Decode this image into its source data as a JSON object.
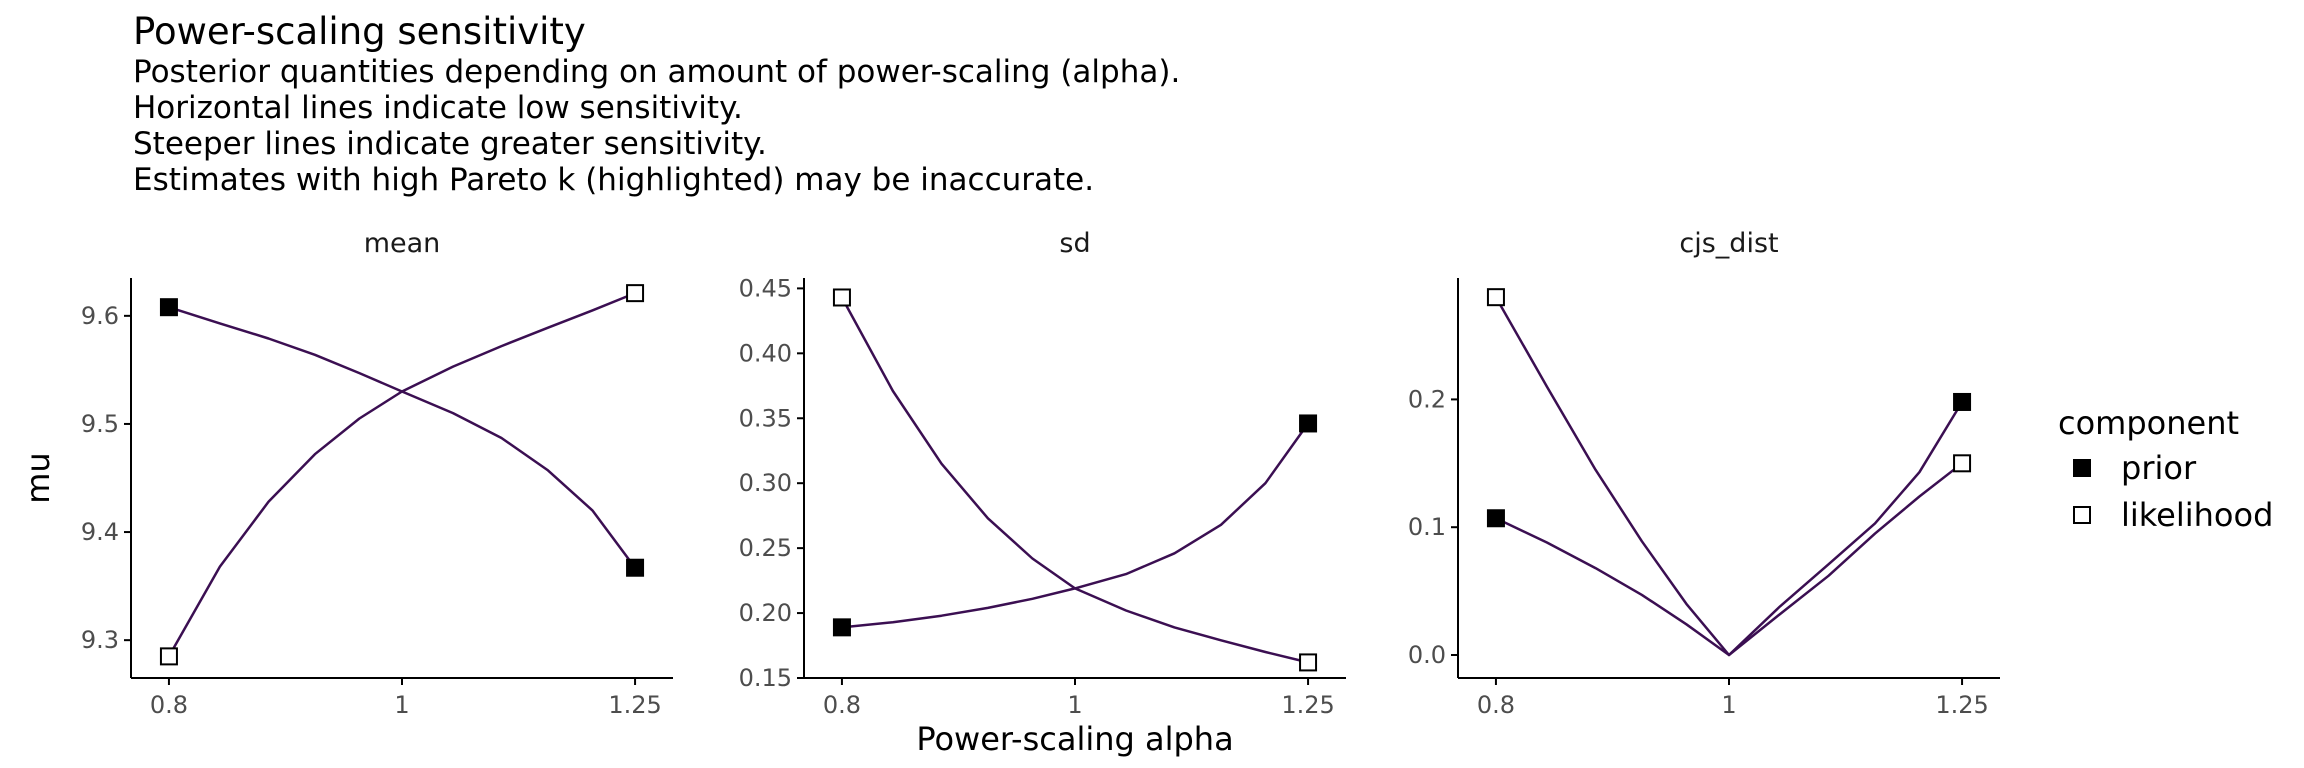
{
  "title": "Power-scaling sensitivity",
  "subtitle_lines": [
    "Posterior quantities depending on amount of power-scaling (alpha).",
    "Horizontal lines indicate low sensitivity.",
    "Steeper lines indicate greater sensitivity.",
    "Estimates with high Pareto k (highlighted) may be inaccurate."
  ],
  "colors": {
    "line": "#3b0f52",
    "marker_fill_prior": "#000000",
    "marker_fill_likelihood": "#ffffff",
    "marker_stroke": "#000000",
    "axis": "#000000",
    "tick_text": "#4d4d4d"
  },
  "legend": {
    "title": "component",
    "placement": "right",
    "items": [
      {
        "label": "prior",
        "marker": "filled-square"
      },
      {
        "label": "likelihood",
        "marker": "open-square"
      }
    ]
  },
  "chart_data": [
    {
      "type": "line",
      "panel_title": "mean",
      "ylabel": "mu",
      "xlabel": "",
      "x_scale": "log",
      "x_ticks": [
        0.8,
        1,
        1.25
      ],
      "x_tick_labels": [
        "0.8",
        "1",
        "1.25"
      ],
      "ylim": [
        9.265,
        9.635
      ],
      "y_ticks": [
        9.3,
        9.4,
        9.5,
        9.6
      ],
      "y_tick_labels": [
        "9.3",
        "9.4",
        "9.5",
        "9.6"
      ],
      "grid": false,
      "series": [
        {
          "component": "prior",
          "x": [
            0.8,
            0.84,
            0.88,
            0.92,
            0.96,
            1.0,
            1.05,
            1.1,
            1.15,
            1.2,
            1.25
          ],
          "y": [
            9.608,
            9.593,
            9.579,
            9.564,
            9.547,
            9.53,
            9.51,
            9.487,
            9.457,
            9.42,
            9.367
          ],
          "marker_points": [
            [
              0.8,
              9.608
            ],
            [
              1.25,
              9.367
            ]
          ]
        },
        {
          "component": "likelihood",
          "x": [
            0.8,
            0.84,
            0.88,
            0.92,
            0.96,
            1.0,
            1.05,
            1.1,
            1.15,
            1.2,
            1.25
          ],
          "y": [
            9.285,
            9.368,
            9.428,
            9.472,
            9.505,
            9.53,
            9.553,
            9.572,
            9.589,
            9.605,
            9.621
          ],
          "marker_points": [
            [
              0.8,
              9.285
            ],
            [
              1.25,
              9.621
            ]
          ]
        }
      ]
    },
    {
      "type": "line",
      "panel_title": "sd",
      "ylabel": "",
      "xlabel": "Power-scaling alpha",
      "x_scale": "log",
      "x_ticks": [
        0.8,
        1,
        1.25
      ],
      "x_tick_labels": [
        "0.8",
        "1",
        "1.25"
      ],
      "ylim": [
        0.15,
        0.458
      ],
      "y_ticks": [
        0.15,
        0.2,
        0.25,
        0.3,
        0.35,
        0.4,
        0.45
      ],
      "y_tick_labels": [
        "0.15",
        "0.20",
        "0.25",
        "0.30",
        "0.35",
        "0.40",
        "0.45"
      ],
      "grid": false,
      "series": [
        {
          "component": "prior",
          "x": [
            0.8,
            0.84,
            0.88,
            0.92,
            0.96,
            1.0,
            1.05,
            1.1,
            1.15,
            1.2,
            1.25
          ],
          "y": [
            0.189,
            0.193,
            0.198,
            0.204,
            0.211,
            0.219,
            0.23,
            0.246,
            0.268,
            0.3,
            0.346
          ],
          "marker_points": [
            [
              0.8,
              0.189
            ],
            [
              1.25,
              0.346
            ]
          ]
        },
        {
          "component": "likelihood",
          "x": [
            0.8,
            0.84,
            0.88,
            0.92,
            0.96,
            1.0,
            1.05,
            1.1,
            1.15,
            1.2,
            1.25
          ],
          "y": [
            0.443,
            0.371,
            0.315,
            0.273,
            0.242,
            0.219,
            0.202,
            0.189,
            0.179,
            0.17,
            0.162
          ],
          "marker_points": [
            [
              0.8,
              0.443
            ],
            [
              1.25,
              0.162
            ]
          ]
        }
      ]
    },
    {
      "type": "line",
      "panel_title": "cjs_dist",
      "ylabel": "",
      "xlabel": "",
      "x_scale": "log",
      "x_ticks": [
        0.8,
        1,
        1.25
      ],
      "x_tick_labels": [
        "0.8",
        "1",
        "1.25"
      ],
      "ylim": [
        -0.018,
        0.295
      ],
      "y_ticks": [
        0.0,
        0.1,
        0.2
      ],
      "y_tick_labels": [
        "0.0",
        "0.1",
        "0.2"
      ],
      "grid": false,
      "series": [
        {
          "component": "prior",
          "x": [
            0.8,
            0.84,
            0.88,
            0.92,
            0.96,
            1.0,
            1.05,
            1.1,
            1.15,
            1.2,
            1.25
          ],
          "y": [
            0.107,
            0.088,
            0.068,
            0.047,
            0.024,
            0.0,
            0.038,
            0.071,
            0.103,
            0.143,
            0.198
          ],
          "marker_points": [
            [
              0.8,
              0.107
            ],
            [
              1.25,
              0.198
            ]
          ]
        },
        {
          "component": "likelihood",
          "x": [
            0.8,
            0.84,
            0.88,
            0.92,
            0.96,
            1.0,
            1.05,
            1.1,
            1.15,
            1.2,
            1.25
          ],
          "y": [
            0.28,
            0.21,
            0.145,
            0.089,
            0.04,
            0.0,
            0.032,
            0.062,
            0.095,
            0.124,
            0.15
          ],
          "marker_points": [
            [
              0.8,
              0.28
            ],
            [
              1.25,
              0.15
            ]
          ]
        }
      ]
    }
  ]
}
